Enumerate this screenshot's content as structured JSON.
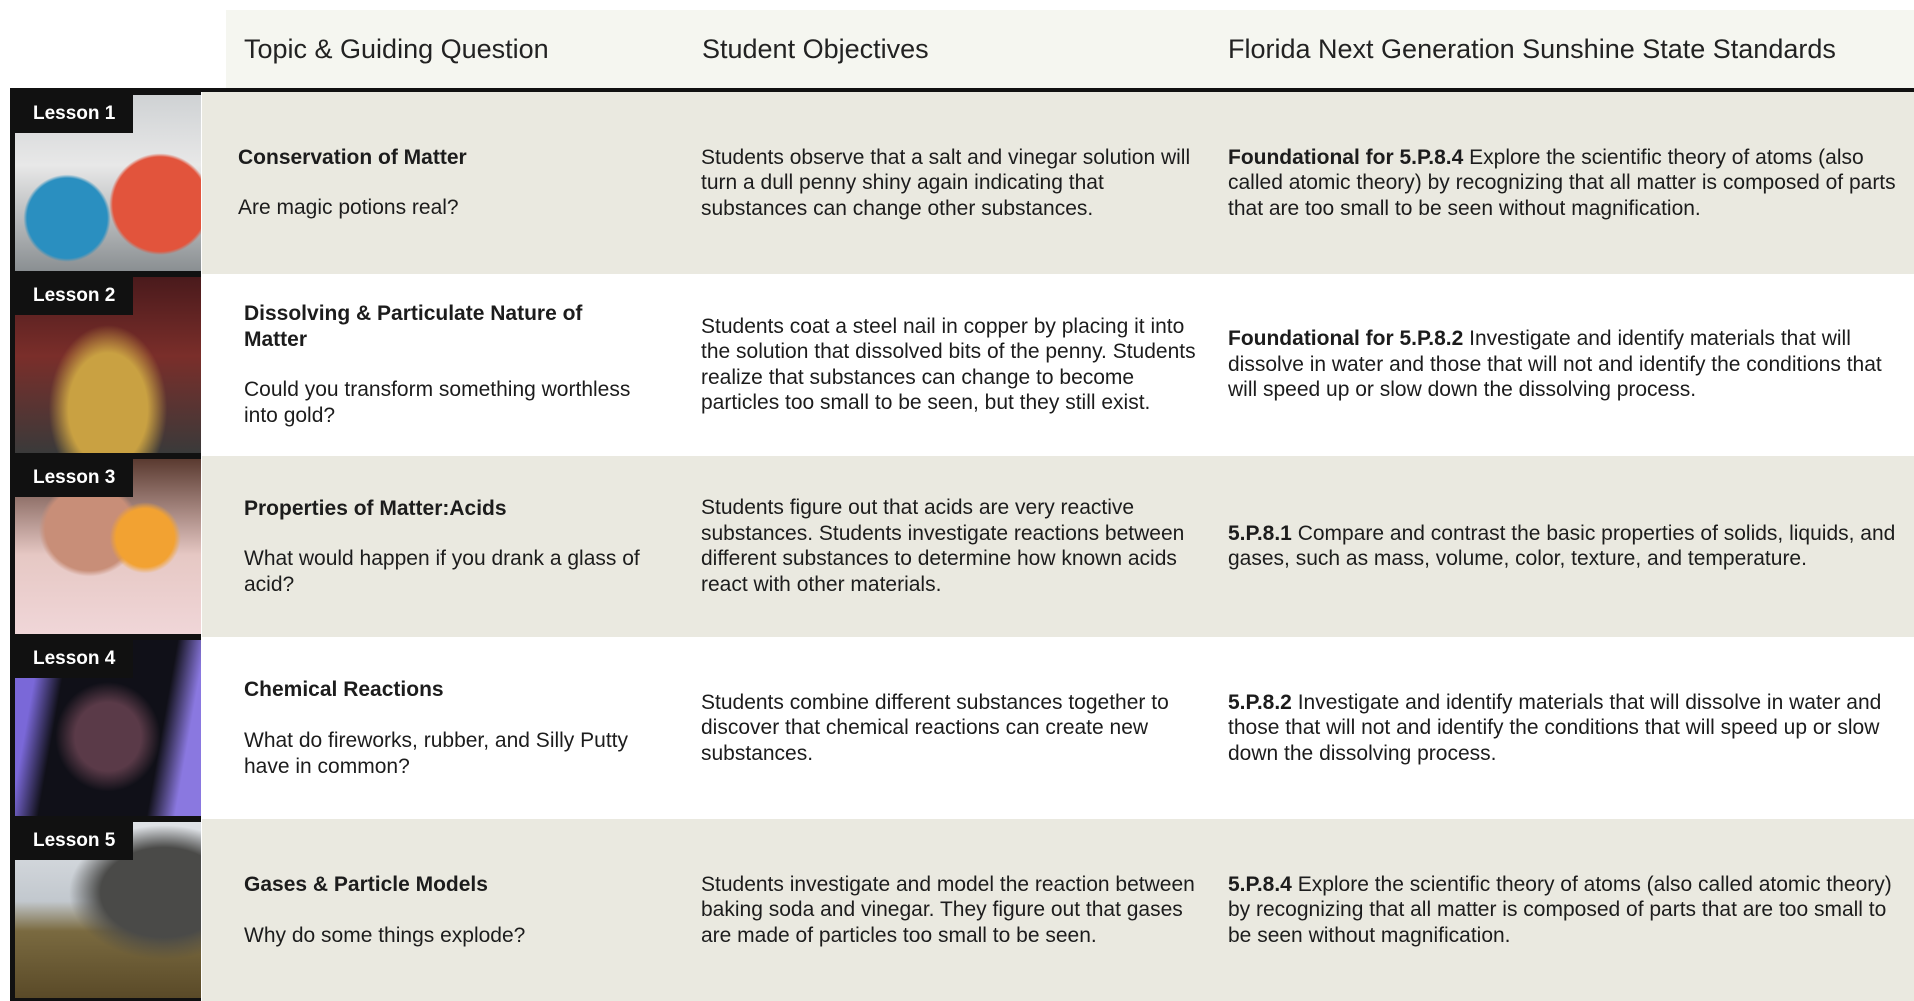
{
  "header": {
    "columns": [
      "Topic & Guiding Question",
      "Student Objectives",
      "Florida Next Generation Sunshine State Standards"
    ]
  },
  "lessons": [
    {
      "label": "Lesson 1",
      "topic": "Conservation of Matter",
      "question": "Are magic potions real?",
      "objective": "Students observe that a salt and vinegar solution will turn a dull penny shiny again indicating that substances can change other substances.",
      "standard_code": "Foundational for 5.P.8.4",
      "standard_text": "Explore the scientific theory of atoms (also called atomic theory) by recognizing that all matter is composed of parts that are too small to be seen without magnification."
    },
    {
      "label": "Lesson 2",
      "topic": "Dissolving & Particulate Nature of Matter",
      "question": "Could you transform something worthless into gold?",
      "objective": "Students coat a steel nail in copper by placing it into the solution that dissolved bits of the penny. Students realize that substances can change to become particles too small to be seen, but they still exist.",
      "standard_code": "Foundational for 5.P.8.2",
      "standard_text": "Investigate and identify materials that will dissolve in water and those that will not and identify the conditions that will speed up or slow down the dissolving process."
    },
    {
      "label": "Lesson 3",
      "topic": "Properties of Matter:Acids",
      "question": "What would happen if you drank a glass of acid?",
      "objective": "Students figure out that acids are very reactive substances. Students investigate reactions between different substances to determine how known acids react with other materials.",
      "standard_code": "5.P.8.1",
      "standard_text": "Compare and contrast the basic properties of solids, liquids, and gases, such as mass, volume, color, texture, and temperature."
    },
    {
      "label": "Lesson 4",
      "topic": "Chemical Reactions",
      "question": "What do fireworks, rubber, and Silly Putty have in common?",
      "objective": "Students combine different substances together to discover that chemical reactions can create new substances.",
      "standard_code": "5.P.8.2",
      "standard_text": "Investigate and identify materials that will dissolve in water and those that will not and identify the conditions that will speed up or slow down the dissolving process."
    },
    {
      "label": "Lesson 5",
      "topic": "Gases & Particle Models",
      "question": "Why do some things explode?",
      "objective": "Students investigate and model the reaction between baking soda and vinegar. They figure out that gases are made of particles too small to be seen.",
      "standard_code": "5.P.8.4",
      "standard_text": "Explore the scientific theory of atoms (also called atomic theory) by recognizing that all matter is composed of parts that are too small to be seen without magnification."
    }
  ]
}
